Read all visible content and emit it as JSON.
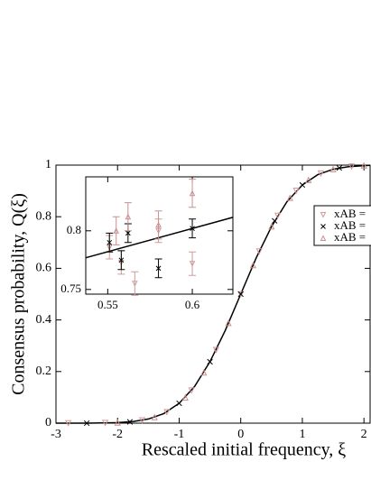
{
  "chart_data": [
    {
      "type": "scatter",
      "x_label": "Rescaled initial frequency, ξ",
      "y_label": "Consensus probability, Q(ξ)",
      "xlim": [
        -3,
        2.1
      ],
      "ylim": [
        0,
        1
      ],
      "xticks": [
        -3,
        -2,
        -1,
        0,
        1,
        2
      ],
      "yticks": [
        0,
        0.2,
        0.4,
        0.6,
        0.8,
        1
      ],
      "legend": "upper right",
      "curve": {
        "color": "#000000",
        "x": [
          -3,
          -2.5,
          -2,
          -1.75,
          -1.5,
          -1.25,
          -1,
          -0.75,
          -0.5,
          -0.25,
          0,
          0.25,
          0.5,
          0.75,
          1,
          1.25,
          1.5,
          1.75,
          2,
          2.1
        ],
        "y": [
          0,
          0.0002,
          0.002,
          0.006,
          0.016,
          0.037,
          0.077,
          0.142,
          0.238,
          0.36,
          0.5,
          0.64,
          0.762,
          0.858,
          0.923,
          0.963,
          0.984,
          0.994,
          0.998,
          0.999
        ]
      },
      "series": [
        {
          "name": "xAB =",
          "color": "#d09a9a",
          "marker": "triangle-down",
          "x": [
            -2.8,
            -2.2,
            -1.6,
            -1.2,
            -0.8,
            -0.4,
            0,
            0.3,
            0.6,
            0.9,
            1.3,
            1.8
          ],
          "y": [
            0,
            0.001,
            0.011,
            0.043,
            0.127,
            0.284,
            0.5,
            0.666,
            0.804,
            0.901,
            0.968,
            0.995
          ]
        },
        {
          "name": "xAB =",
          "color": "#000000",
          "marker": "x",
          "x": [
            -2.5,
            -1.8,
            -1.0,
            -0.5,
            0,
            0.55,
            1.0,
            1.6
          ],
          "y": [
            0,
            0.005,
            0.077,
            0.238,
            0.5,
            0.784,
            0.923,
            0.989
          ]
        },
        {
          "name": "xAB =",
          "color": "#c89090",
          "marker": "triangle-up",
          "x": [
            -2.0,
            -1.4,
            -0.9,
            -0.6,
            -0.2,
            0.2,
            0.5,
            0.8,
            1.1,
            1.5,
            2.0
          ],
          "y": [
            0.002,
            0.023,
            0.099,
            0.196,
            0.388,
            0.612,
            0.762,
            0.873,
            0.942,
            0.984,
            0.998
          ]
        }
      ]
    },
    {
      "type": "scatter",
      "xlim": [
        0.537,
        0.624
      ],
      "ylim": [
        0.746,
        0.846
      ],
      "xticks": [
        0.55,
        0.6
      ],
      "yticks": [
        0.75,
        0.8
      ],
      "line": {
        "color": "#000000",
        "x": [
          0.537,
          0.624
        ],
        "y": [
          0.777,
          0.8115
        ]
      },
      "series": [
        {
          "color": "#d09a9a",
          "marker": "triangle-down",
          "x": [
            0.551,
            0.558,
            0.566,
            0.58,
            0.6
          ],
          "y": [
            0.786,
            0.773,
            0.755,
            0.8,
            0.772
          ],
          "err": [
            0.01,
            0.01,
            0.01,
            0.01,
            0.01
          ]
        },
        {
          "color": "#000000",
          "marker": "x",
          "x": [
            0.551,
            0.558,
            0.562,
            0.58,
            0.6
          ],
          "y": [
            0.79,
            0.775,
            0.798,
            0.768,
            0.802
          ],
          "err": [
            0.008,
            0.008,
            0.008,
            0.008,
            0.008
          ]
        },
        {
          "color": "#c89090",
          "marker": "triangle-up",
          "x": [
            0.555,
            0.562,
            0.58,
            0.6
          ],
          "y": [
            0.8,
            0.812,
            0.805,
            0.832
          ],
          "err": [
            0.012,
            0.012,
            0.012,
            0.012
          ]
        }
      ]
    }
  ]
}
